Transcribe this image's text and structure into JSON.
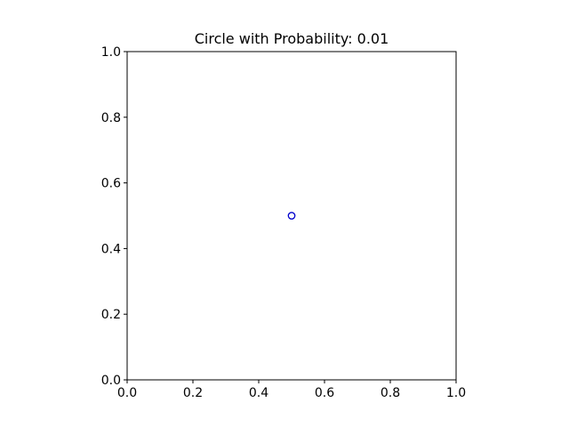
{
  "chart_data": {
    "type": "scatter",
    "title": "Circle with Probability: 0.01",
    "xlabel": "",
    "ylabel": "",
    "xlim": [
      0,
      1
    ],
    "ylim": [
      0,
      1
    ],
    "xticks": [
      "0.0",
      "0.2",
      "0.4",
      "0.6",
      "0.8",
      "1.0"
    ],
    "yticks": [
      "0.0",
      "0.2",
      "0.4",
      "0.6",
      "0.8",
      "1.0"
    ],
    "grid": false,
    "series": [
      {
        "points": [
          {
            "x": 0.5,
            "y": 0.5
          }
        ],
        "marker": "circle-open",
        "color": "#0000cc",
        "radius": 0.01
      }
    ]
  }
}
